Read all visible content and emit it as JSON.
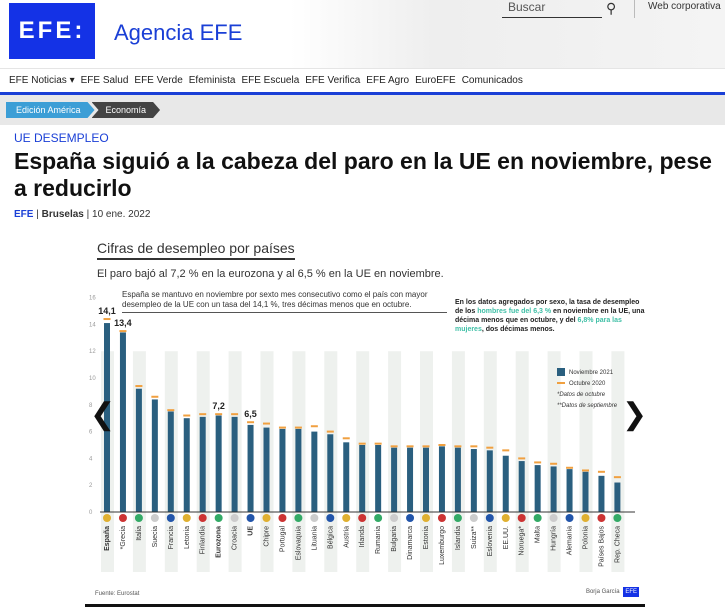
{
  "header": {
    "logo": "EFE:",
    "brand": "Agencia EFE",
    "search_placeholder": "Buscar",
    "web_corporativa": "Web corporativa"
  },
  "nav": [
    "EFE Noticias ▾",
    "EFE Salud",
    "EFE Verde",
    "Efeminista",
    "EFE Escuela",
    "EFE Verifica",
    "EFE Agro",
    "EuroEFE",
    "Comunicados"
  ],
  "breadcrumb": [
    "Edición América",
    "Economía"
  ],
  "article": {
    "kicker": "UE DESEMPLEO",
    "title": "España siguió a la cabeza del paro en la UE en noviembre, pese a reducirlo",
    "source": "EFE",
    "location": "Bruselas",
    "date": "10 ene. 2022"
  },
  "graphic": {
    "title": "Cifras de desempleo por países",
    "subtitle": "El paro bajó al 7,2 % en la eurozona y al 6,5 % en la UE en noviembre.",
    "note1": "España se mantuvo en noviembre por sexto mes consecutivo como el país con mayor desempleo de la UE con un tasa del 14,1 %, tres décimas menos que en octubre.",
    "note2_a": "En los datos agregados por sexo, la tasa de desempleo de los ",
    "note2_b": "hombres fue del 6,3 %",
    "note2_c": " en noviembre en la UE, una décima menos que en octubre, y del ",
    "note2_d": "6,8% para las mujeres",
    "note2_e": ", dos décimas menos.",
    "legend": {
      "nov": "Noviembre 2021",
      "oct": "Octubre 2020",
      "f1": "*Datos de octubre",
      "f2": "**Datos de septiembre"
    },
    "source": "Fuente: Eurostat",
    "credit": "Borja García",
    "credit_logo": "EFE"
  },
  "colors": {
    "bar": "#2a5f7f",
    "oct": "#f0a040",
    "band": "#eef1ee"
  },
  "chart_data": {
    "type": "bar",
    "ylim": [
      0,
      16
    ],
    "yticks": [
      0,
      2,
      4,
      6,
      8,
      10,
      12,
      14,
      16
    ],
    "categories": [
      "España",
      "*Grecia",
      "Italia",
      "Suecia",
      "Francia",
      "Letonia",
      "Finlandia",
      "Eurozona",
      "Croacia",
      "UE",
      "Chipre",
      "Portugal",
      "Eslovaquia",
      "Lituania",
      "Bélgica",
      "Austria",
      "Irlanda",
      "Rumania",
      "Bulgaria",
      "Dinamarca",
      "Estonia",
      "Luxemburgo",
      "Islandia",
      "Suiza**",
      "Eslovenia",
      "EE.UU.",
      "Noruega*",
      "Malta",
      "Hungría",
      "Alemania",
      "Polonia",
      "Países Bajos",
      "Rep. Checa"
    ],
    "series": [
      {
        "name": "Noviembre 2021",
        "values": [
          14.1,
          13.4,
          9.2,
          8.4,
          7.5,
          7.0,
          7.1,
          7.2,
          7.1,
          6.5,
          6.3,
          6.2,
          6.2,
          6.0,
          5.8,
          5.2,
          5.0,
          5.0,
          4.8,
          4.8,
          4.8,
          4.9,
          4.8,
          4.7,
          4.6,
          4.2,
          3.8,
          3.5,
          3.4,
          3.2,
          3.0,
          2.7,
          2.2
        ]
      },
      {
        "name": "Octubre 2020",
        "values": [
          14.4,
          13.5,
          9.4,
          8.6,
          7.6,
          7.2,
          7.3,
          7.3,
          7.3,
          6.7,
          6.6,
          6.3,
          6.3,
          6.4,
          6.0,
          5.5,
          5.1,
          5.1,
          4.9,
          4.9,
          4.9,
          5.0,
          4.9,
          4.9,
          4.8,
          4.6,
          4.0,
          3.7,
          3.6,
          3.3,
          3.1,
          3.0,
          2.6
        ]
      }
    ],
    "labels": {
      "España": "14,1",
      "*Grecia": "13,4",
      "Eurozona": "7,2",
      "UE": "6,5",
      "Rep. Checa": "2,2"
    }
  }
}
